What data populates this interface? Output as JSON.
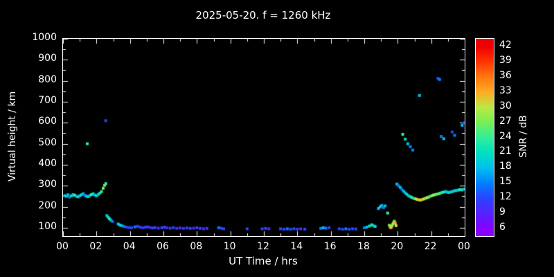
{
  "figure": {
    "background": "#000000",
    "text_color": "#ffffff"
  },
  "chart_data": {
    "type": "scatter",
    "title": "2025-05-20. f = 1260 kHz",
    "xlabel": "UT Time / hrs",
    "ylabel": "Virtual height / km",
    "xlim": [
      0,
      24
    ],
    "ylim": [
      60,
      1000
    ],
    "grid": false,
    "xtick_step_hrs": 2,
    "xticks": [
      "00",
      "02",
      "04",
      "06",
      "08",
      "10",
      "12",
      "14",
      "16",
      "18",
      "20",
      "22",
      "00"
    ],
    "yticks": [
      100,
      200,
      300,
      400,
      500,
      600,
      700,
      800,
      900,
      1000
    ],
    "colorbar": {
      "label": "SNR / dB",
      "ticks": [
        6,
        9,
        12,
        15,
        18,
        21,
        24,
        27,
        30,
        33,
        36,
        39,
        42
      ],
      "range": [
        4.5,
        43.5
      ],
      "stops": [
        {
          "v": 6,
          "c": "#8800ff"
        },
        {
          "v": 9,
          "c": "#5522ff"
        },
        {
          "v": 12,
          "c": "#2a44ff"
        },
        {
          "v": 15,
          "c": "#0080ff"
        },
        {
          "v": 18,
          "c": "#00c0ee"
        },
        {
          "v": 21,
          "c": "#00e0c0"
        },
        {
          "v": 24,
          "c": "#33ee99"
        },
        {
          "v": 27,
          "c": "#77ee55"
        },
        {
          "v": 30,
          "c": "#bbe844"
        },
        {
          "v": 33,
          "c": "#ffaa22"
        },
        {
          "v": 36,
          "c": "#ff7711"
        },
        {
          "v": 39,
          "c": "#ff3300"
        },
        {
          "v": 42,
          "c": "#ee0000"
        }
      ]
    },
    "points": [
      [
        0.1,
        253,
        18
      ],
      [
        0.2,
        250,
        21
      ],
      [
        0.3,
        257,
        18
      ],
      [
        0.38,
        246,
        15
      ],
      [
        0.5,
        252,
        21
      ],
      [
        0.6,
        258,
        18
      ],
      [
        0.7,
        255,
        24
      ],
      [
        0.8,
        250,
        18
      ],
      [
        0.9,
        247,
        21
      ],
      [
        1.0,
        252,
        18
      ],
      [
        1.1,
        257,
        21
      ],
      [
        1.2,
        262,
        18
      ],
      [
        1.3,
        255,
        15
      ],
      [
        1.4,
        250,
        18
      ],
      [
        1.5,
        248,
        21
      ],
      [
        1.6,
        253,
        18
      ],
      [
        1.7,
        258,
        24
      ],
      [
        1.8,
        262,
        21
      ],
      [
        1.9,
        256,
        18
      ],
      [
        2.0,
        252,
        21
      ],
      [
        2.1,
        258,
        18
      ],
      [
        2.2,
        265,
        21
      ],
      [
        2.3,
        272,
        24
      ],
      [
        2.4,
        288,
        27
      ],
      [
        2.48,
        302,
        27
      ],
      [
        2.56,
        310,
        24
      ],
      [
        1.45,
        500,
        24
      ],
      [
        2.55,
        610,
        12
      ],
      [
        2.62,
        158,
        18
      ],
      [
        2.7,
        150,
        21
      ],
      [
        2.78,
        142,
        24
      ],
      [
        2.86,
        136,
        18
      ],
      [
        2.95,
        130,
        15
      ],
      [
        3.3,
        118,
        18
      ],
      [
        3.4,
        113,
        21
      ],
      [
        3.5,
        110,
        18
      ],
      [
        3.65,
        106,
        15
      ],
      [
        3.8,
        103,
        12
      ],
      [
        3.95,
        101,
        12
      ],
      [
        4.1,
        100,
        12
      ],
      [
        4.3,
        104,
        15
      ],
      [
        4.45,
        107,
        12
      ],
      [
        4.6,
        103,
        12
      ],
      [
        4.75,
        100,
        9
      ],
      [
        4.9,
        102,
        12
      ],
      [
        5.05,
        104,
        12
      ],
      [
        5.2,
        101,
        9
      ],
      [
        5.35,
        99,
        12
      ],
      [
        5.5,
        101,
        12
      ],
      [
        5.7,
        98,
        9
      ],
      [
        5.9,
        100,
        12
      ],
      [
        6.05,
        103,
        12
      ],
      [
        6.2,
        100,
        9
      ],
      [
        6.4,
        98,
        12
      ],
      [
        6.6,
        100,
        12
      ],
      [
        6.8,
        97,
        9
      ],
      [
        7.0,
        99,
        12
      ],
      [
        7.2,
        97,
        9
      ],
      [
        7.4,
        99,
        12
      ],
      [
        7.6,
        97,
        12
      ],
      [
        7.8,
        98,
        9
      ],
      [
        8.0,
        100,
        12
      ],
      [
        8.2,
        97,
        12
      ],
      [
        8.4,
        95,
        9
      ],
      [
        8.6,
        97,
        12
      ],
      [
        9.3,
        100,
        15
      ],
      [
        9.45,
        98,
        12
      ],
      [
        9.6,
        95,
        12
      ],
      [
        11.0,
        95,
        12
      ],
      [
        11.9,
        95,
        12
      ],
      [
        12.1,
        97,
        12
      ],
      [
        12.3,
        95,
        9
      ],
      [
        13.0,
        95,
        12
      ],
      [
        13.2,
        93,
        12
      ],
      [
        13.4,
        95,
        15
      ],
      [
        13.6,
        93,
        12
      ],
      [
        13.8,
        95,
        12
      ],
      [
        14.0,
        93,
        12
      ],
      [
        14.2,
        95,
        9
      ],
      [
        14.45,
        93,
        12
      ],
      [
        15.4,
        97,
        15
      ],
      [
        15.55,
        100,
        18
      ],
      [
        15.7,
        98,
        15
      ],
      [
        15.9,
        100,
        12
      ],
      [
        16.5,
        95,
        12
      ],
      [
        16.7,
        93,
        12
      ],
      [
        16.9,
        95,
        15
      ],
      [
        17.1,
        93,
        12
      ],
      [
        17.3,
        95,
        12
      ],
      [
        17.5,
        94,
        12
      ],
      [
        18.0,
        100,
        15
      ],
      [
        18.15,
        103,
        18
      ],
      [
        18.3,
        108,
        21
      ],
      [
        18.45,
        114,
        24
      ],
      [
        18.55,
        110,
        18
      ],
      [
        18.65,
        106,
        21
      ],
      [
        18.85,
        192,
        18
      ],
      [
        18.95,
        200,
        21
      ],
      [
        19.05,
        206,
        18
      ],
      [
        19.15,
        196,
        15
      ],
      [
        19.25,
        204,
        18
      ],
      [
        19.4,
        170,
        24
      ],
      [
        19.5,
        112,
        27
      ],
      [
        19.55,
        104,
        30
      ],
      [
        19.6,
        100,
        33
      ],
      [
        19.65,
        108,
        30
      ],
      [
        19.7,
        116,
        27
      ],
      [
        19.75,
        124,
        30
      ],
      [
        19.8,
        131,
        27
      ],
      [
        19.85,
        121,
        33
      ],
      [
        19.9,
        110,
        30
      ],
      [
        19.95,
        308,
        18
      ],
      [
        20.05,
        300,
        15
      ],
      [
        20.15,
        292,
        18
      ],
      [
        20.25,
        283,
        15
      ],
      [
        20.35,
        274,
        18
      ],
      [
        20.45,
        266,
        18
      ],
      [
        20.55,
        259,
        21
      ],
      [
        20.65,
        252,
        18
      ],
      [
        20.75,
        248,
        21
      ],
      [
        20.85,
        244,
        24
      ],
      [
        20.95,
        240,
        21
      ],
      [
        21.05,
        238,
        27
      ],
      [
        21.15,
        235,
        30
      ],
      [
        21.25,
        233,
        33
      ],
      [
        21.35,
        232,
        30
      ],
      [
        21.45,
        234,
        33
      ],
      [
        21.55,
        237,
        30
      ],
      [
        21.65,
        240,
        27
      ],
      [
        21.75,
        243,
        30
      ],
      [
        21.85,
        246,
        27
      ],
      [
        21.95,
        250,
        24
      ],
      [
        22.05,
        253,
        27
      ],
      [
        22.15,
        256,
        30
      ],
      [
        22.25,
        258,
        27
      ],
      [
        22.35,
        260,
        24
      ],
      [
        22.45,
        262,
        27
      ],
      [
        22.55,
        265,
        24
      ],
      [
        22.65,
        268,
        21
      ],
      [
        22.75,
        270,
        24
      ],
      [
        22.85,
        272,
        21
      ],
      [
        22.95,
        270,
        18
      ],
      [
        23.05,
        268,
        21
      ],
      [
        23.15,
        270,
        18
      ],
      [
        23.25,
        272,
        21
      ],
      [
        23.35,
        275,
        18
      ],
      [
        23.45,
        277,
        21
      ],
      [
        23.55,
        278,
        18
      ],
      [
        23.65,
        280,
        21
      ],
      [
        23.75,
        282,
        24
      ],
      [
        23.85,
        280,
        21
      ],
      [
        23.95,
        284,
        18
      ],
      [
        20.3,
        545,
        24
      ],
      [
        20.45,
        522,
        21
      ],
      [
        20.6,
        500,
        18
      ],
      [
        20.75,
        486,
        15
      ],
      [
        20.9,
        470,
        15
      ],
      [
        21.3,
        730,
        18
      ],
      [
        22.4,
        812,
        12
      ],
      [
        22.5,
        806,
        15
      ],
      [
        22.6,
        535,
        15
      ],
      [
        22.75,
        524,
        18
      ],
      [
        23.25,
        556,
        12
      ],
      [
        23.4,
        540,
        15
      ],
      [
        23.85,
        588,
        18
      ],
      [
        23.95,
        600,
        12
      ]
    ]
  }
}
